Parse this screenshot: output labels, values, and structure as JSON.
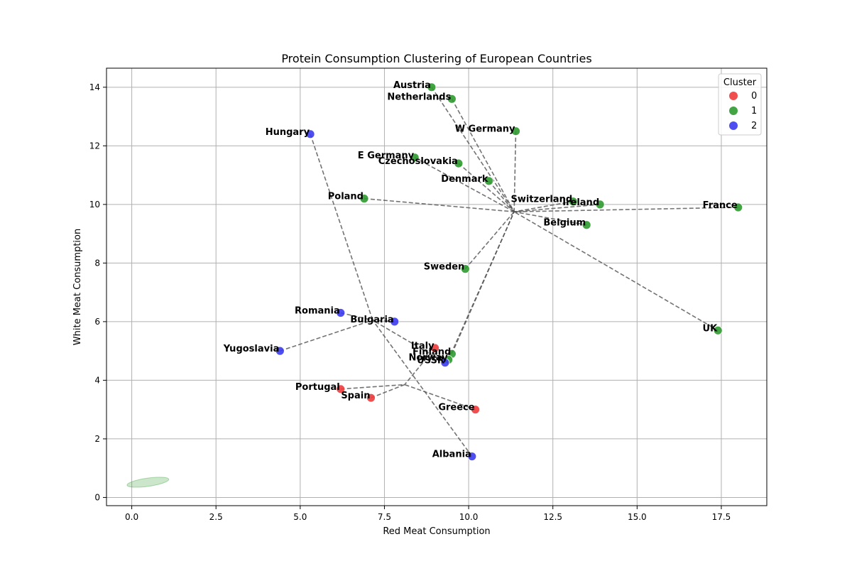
{
  "chart_data": {
    "type": "scatter",
    "title": "Protein Consumption Clustering of European Countries",
    "xlabel": "Red Meat Consumption",
    "ylabel": "White Meat Consumption",
    "xlim": [
      -0.75,
      18.85
    ],
    "ylim": [
      -0.28,
      14.65
    ],
    "xticks": [
      0.0,
      2.5,
      5.0,
      7.5,
      10.0,
      12.5,
      15.0,
      17.5
    ],
    "xtick_labels": [
      "0.0",
      "2.5",
      "5.0",
      "7.5",
      "10.0",
      "12.5",
      "15.0",
      "17.5"
    ],
    "yticks": [
      0,
      2,
      4,
      6,
      8,
      10,
      12,
      14
    ],
    "ytick_labels": [
      "0",
      "2",
      "4",
      "6",
      "8",
      "10",
      "12",
      "14"
    ],
    "grid": true,
    "legend": {
      "title": "Cluster",
      "placement": "top-right",
      "entries": [
        {
          "label": "0",
          "color": "#f03c3c"
        },
        {
          "label": "1",
          "color": "#2e9a2e"
        },
        {
          "label": "2",
          "color": "#3c3cf0"
        }
      ]
    },
    "cluster_colors": {
      "0": "#f03c3c",
      "1": "#2e9a2e",
      "2": "#3c3cf0"
    },
    "points": [
      {
        "label": "Albania",
        "x": 10.1,
        "y": 1.4,
        "cluster": 2
      },
      {
        "label": "Austria",
        "x": 8.9,
        "y": 14.0,
        "cluster": 1
      },
      {
        "label": "Belgium",
        "x": 13.5,
        "y": 9.3,
        "cluster": 1
      },
      {
        "label": "Bulgaria",
        "x": 7.8,
        "y": 6.0,
        "cluster": 2
      },
      {
        "label": "Czechoslovakia",
        "x": 9.7,
        "y": 11.4,
        "cluster": 1
      },
      {
        "label": "Denmark",
        "x": 10.6,
        "y": 10.8,
        "cluster": 1
      },
      {
        "label": "E Germany",
        "x": 8.4,
        "y": 11.6,
        "cluster": 1
      },
      {
        "label": "Finland",
        "x": 9.5,
        "y": 4.9,
        "cluster": 1
      },
      {
        "label": "France",
        "x": 18.0,
        "y": 9.9,
        "cluster": 1
      },
      {
        "label": "Greece",
        "x": 10.2,
        "y": 3.0,
        "cluster": 0
      },
      {
        "label": "Hungary",
        "x": 5.3,
        "y": 12.4,
        "cluster": 2
      },
      {
        "label": "Ireland",
        "x": 13.9,
        "y": 10.0,
        "cluster": 1
      },
      {
        "label": "Italy",
        "x": 9.0,
        "y": 5.1,
        "cluster": 0
      },
      {
        "label": "Netherlands",
        "x": 9.5,
        "y": 13.6,
        "cluster": 1
      },
      {
        "label": "Norway",
        "x": 9.4,
        "y": 4.7,
        "cluster": 1
      },
      {
        "label": "Poland",
        "x": 6.9,
        "y": 10.2,
        "cluster": 1
      },
      {
        "label": "Portugal",
        "x": 6.2,
        "y": 3.7,
        "cluster": 0
      },
      {
        "label": "Romania",
        "x": 6.2,
        "y": 6.3,
        "cluster": 2
      },
      {
        "label": "Spain",
        "x": 7.1,
        "y": 3.4,
        "cluster": 0
      },
      {
        "label": "Sweden",
        "x": 9.9,
        "y": 7.8,
        "cluster": 1
      },
      {
        "label": "Switzerland",
        "x": 13.1,
        "y": 10.1,
        "cluster": 1
      },
      {
        "label": "UK",
        "x": 17.4,
        "y": 5.7,
        "cluster": 1
      },
      {
        "label": "USSR",
        "x": 9.3,
        "y": 4.6,
        "cluster": 2
      },
      {
        "label": "W Germany",
        "x": 11.4,
        "y": 12.5,
        "cluster": 1
      },
      {
        "label": "Yugoslavia",
        "x": 4.4,
        "y": 5.0,
        "cluster": 2
      }
    ],
    "centroid_hubs": [
      {
        "cluster": 1,
        "x": 11.35,
        "y": 9.75
      },
      {
        "cluster": 2,
        "x": 7.15,
        "y": 6.05
      },
      {
        "cluster": 0,
        "x": 8.1,
        "y": 3.85
      }
    ],
    "confidence_ellipses": [
      {
        "cluster": 1,
        "cx": 0.48,
        "cy": 0.52,
        "width": 1.25,
        "height": 0.28,
        "angle_deg": 8
      }
    ]
  }
}
